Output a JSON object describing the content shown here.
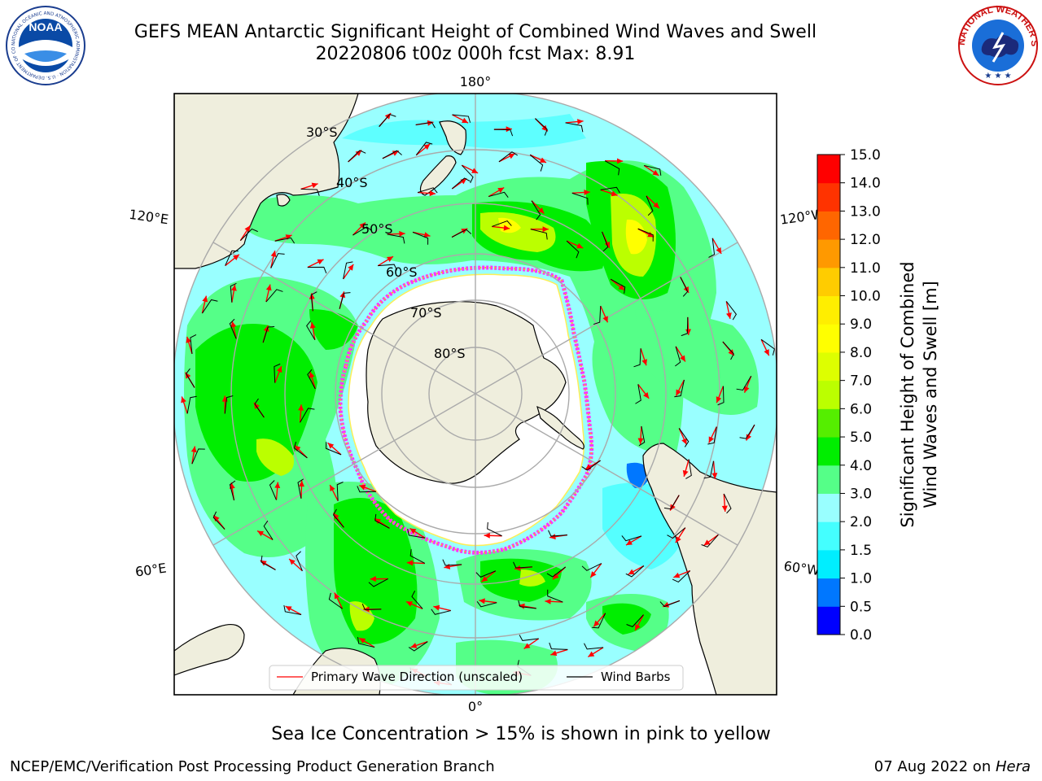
{
  "header": {
    "title_line1": "GEFS MEAN Antarctic Significant Height of Combined Wind Waves and Swell",
    "title_line2": "20220806 t00z 000h fcst   Max: 8.91"
  },
  "logos": {
    "left": {
      "name": "noaa-logo",
      "text": "NOAA",
      "ring_text": "NATIONAL OCEANIC AND ATMOSPHERIC ADMINISTRATION · U.S. DEPARTMENT OF COMMERCE"
    },
    "right": {
      "name": "nws-logo",
      "ring_text": "NATIONAL WEATHER SERVICE"
    }
  },
  "map": {
    "projection": "south-polar-stereographic",
    "longitude_labels": {
      "top": "180°",
      "bottom": "0°",
      "left_upper": "120°E",
      "left_lower": "60°E",
      "right_upper": "120°W",
      "right_lower": "60°W"
    },
    "latitude_labels": [
      "30°S",
      "40°S",
      "50°S",
      "60°S",
      "70°S",
      "80°S"
    ],
    "sea_ice_colors": [
      "#ff33ff",
      "#ffaa33",
      "#ffee55"
    ],
    "land_color": "#efeedd"
  },
  "legend": {
    "primary_wave_direction": "Primary Wave Direction (unscaled)",
    "wind_barbs": "Wind Barbs",
    "arrow_color": "#ff0000",
    "barb_color": "#000000"
  },
  "colorbar": {
    "label_line1": "Significant Height of Combined",
    "label_line2": "Wind Waves and Swell [m]",
    "ticks": [
      "0.0",
      "0.5",
      "1.0",
      "1.5",
      "2.0",
      "3.0",
      "4.0",
      "5.0",
      "6.0",
      "7.0",
      "8.0",
      "9.0",
      "10.0",
      "11.0",
      "12.0",
      "13.0",
      "14.0",
      "15.0"
    ],
    "colors": [
      "#0000ff",
      "#0077ff",
      "#00eeff",
      "#44ffff",
      "#99ffff",
      "#55ff88",
      "#00ee00",
      "#55ee00",
      "#bbff00",
      "#ddff00",
      "#ffff00",
      "#ffee00",
      "#ffcc00",
      "#ff9900",
      "#ff6600",
      "#ff3300",
      "#ff0000"
    ]
  },
  "footer": {
    "sea_ice_note": "Sea Ice Concentration > 15% is shown in pink to yellow",
    "credit": "NCEP/EMC/Verification Post Processing Product Generation Branch",
    "date_prefix": "07 Aug 2022 on ",
    "machine": "Hera"
  }
}
